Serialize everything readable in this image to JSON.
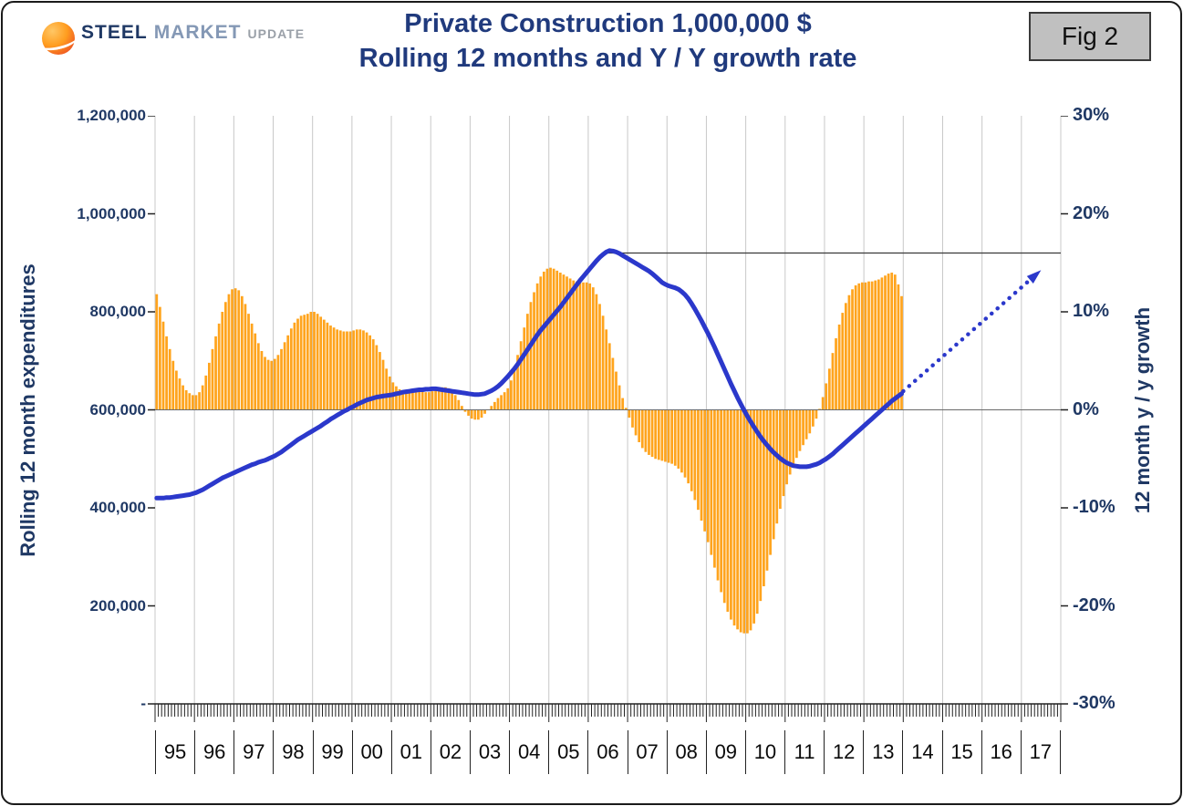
{
  "header": {
    "logo": {
      "steel": "STEEL",
      "market": "MARKET",
      "update": "UPDATE"
    },
    "title_line1": "Private Construction 1,000,000 $",
    "title_line2": "Rolling 12 months and Y / Y growth rate",
    "fig_label": "Fig 2"
  },
  "chart_data": {
    "type": "combo",
    "title": "Private Construction 1,000,000 $",
    "subtitle": "Rolling 12 months and Y / Y growth rate",
    "x_start_year": 1995,
    "x_end_year": 2018,
    "data_start_month": "1995-01",
    "grid": "vertical-year-lines",
    "axes": {
      "left": {
        "title": "Rolling 12 month expenditures",
        "min": 0,
        "max": 1200000,
        "ticks": [
          "1,200,000",
          "1,000,000",
          "800,000",
          "600,000",
          "400,000",
          "200,000",
          "-"
        ]
      },
      "right": {
        "title": "12 month y / y growth",
        "min": -30,
        "max": 30,
        "ticks": [
          "30%",
          "20%",
          "10%",
          "0%",
          "-10%",
          "-20%",
          "-30%"
        ]
      },
      "x": {
        "year_labels": [
          "95",
          "96",
          "97",
          "98",
          "99",
          "00",
          "01",
          "02",
          "03",
          "04",
          "05",
          "06",
          "07",
          "08",
          "09",
          "10",
          "11",
          "12",
          "13",
          "14",
          "15",
          "16",
          "17"
        ]
      }
    },
    "series": [
      {
        "name": "12 month y / y growth rate",
        "type": "bar",
        "axis": "right",
        "color": "#FFA41D",
        "unit": "percent",
        "values": [
          11.8,
          10.5,
          9,
          7.5,
          6.2,
          5,
          4,
          3.2,
          2.5,
          2,
          1.7,
          1.5,
          1.5,
          1.8,
          2.5,
          3.5,
          4.8,
          6.2,
          7.5,
          8.8,
          10,
          11,
          11.8,
          12.3,
          12.4,
          12.2,
          11.6,
          10.8,
          9.8,
          8.8,
          7.8,
          6.8,
          6,
          5.4,
          5.1,
          5,
          5.2,
          5.6,
          6.2,
          6.9,
          7.6,
          8.3,
          8.9,
          9.3,
          9.6,
          9.7,
          9.8,
          10,
          10,
          9.8,
          9.5,
          9.2,
          8.9,
          8.6,
          8.4,
          8.2,
          8.1,
          8,
          8,
          8,
          8.1,
          8.2,
          8.2,
          8.1,
          7.9,
          7.6,
          7.2,
          6.6,
          5.9,
          5.1,
          4.2,
          3.4,
          2.8,
          2.4,
          2.1,
          2,
          2,
          2,
          2,
          2,
          1.9,
          1.9,
          1.8,
          1.8,
          1.9,
          2,
          2.2,
          2.3,
          2.3,
          2.2,
          1.9,
          1.5,
          1,
          0.4,
          -0.2,
          -0.6,
          -0.9,
          -1,
          -1,
          -0.8,
          -0.4,
          0,
          0.4,
          0.8,
          1.2,
          1.5,
          1.8,
          2.2,
          3,
          4.2,
          5.6,
          7,
          8.4,
          9.8,
          11,
          12,
          12.9,
          13.6,
          14.1,
          14.4,
          14.5,
          14.4,
          14.2,
          14,
          13.8,
          13.6,
          13.4,
          13.2,
          13.1,
          13,
          13,
          13,
          12.9,
          12.5,
          11.8,
          10.8,
          9.6,
          8.2,
          6.8,
          5.3,
          3.9,
          2.5,
          1.2,
          0.2,
          -0.8,
          -1.8,
          -2.6,
          -3.3,
          -3.9,
          -4.3,
          -4.6,
          -4.8,
          -5,
          -5.1,
          -5.2,
          -5.3,
          -5.4,
          -5.5,
          -5.7,
          -6,
          -6.4,
          -6.9,
          -7.5,
          -8.3,
          -9.2,
          -10.2,
          -11.3,
          -12.4,
          -13.5,
          -14.8,
          -16.1,
          -17.4,
          -18.6,
          -19.7,
          -20.6,
          -21.4,
          -22,
          -22.4,
          -22.7,
          -22.8,
          -22.8,
          -22.5,
          -21.8,
          -20.8,
          -19.5,
          -18,
          -16.4,
          -14.8,
          -13.2,
          -11.6,
          -10.1,
          -8.8,
          -7.6,
          -6.6,
          -5.7,
          -4.9,
          -4.2,
          -3.6,
          -3,
          -2.4,
          -1.7,
          -0.9,
          0.1,
          1.3,
          2.7,
          4.2,
          5.8,
          7.3,
          8.7,
          9.9,
          10.9,
          11.7,
          12.3,
          12.7,
          12.9,
          13,
          13,
          13.1,
          13.1,
          13.2,
          13.3,
          13.5,
          13.7,
          13.9,
          14,
          13.8,
          12.8,
          11.6
        ]
      },
      {
        "name": "Rolling 12 month expenditures",
        "type": "line",
        "axis": "left",
        "color": "#2B38CB",
        "unit": "1,000,000 $",
        "values": [
          420000,
          420000,
          420000,
          421000,
          421000,
          422000,
          423000,
          424000,
          425000,
          426000,
          427000,
          429000,
          431000,
          434000,
          437000,
          441000,
          445000,
          449000,
          453000,
          457000,
          461000,
          464000,
          467000,
          470000,
          473000,
          476000,
          479000,
          482000,
          485000,
          488000,
          490000,
          493000,
          495000,
          497000,
          500000,
          503000,
          506000,
          510000,
          514000,
          519000,
          524000,
          529000,
          534000,
          539000,
          543000,
          547000,
          551000,
          555000,
          559000,
          563000,
          567000,
          572000,
          576000,
          581000,
          585000,
          589000,
          593000,
          597000,
          600000,
          604000,
          607000,
          611000,
          614000,
          617000,
          620000,
          622000,
          624000,
          626000,
          627000,
          628000,
          629000,
          630000,
          631000,
          633000,
          634000,
          636000,
          637000,
          638000,
          639000,
          640000,
          641000,
          641000,
          642000,
          642000,
          643000,
          643000,
          642000,
          641000,
          640000,
          639000,
          638000,
          637000,
          636000,
          635000,
          634000,
          633000,
          632000,
          631000,
          631000,
          632000,
          633000,
          636000,
          639000,
          643000,
          648000,
          654000,
          661000,
          668000,
          676000,
          684000,
          693000,
          703000,
          713000,
          723000,
          733000,
          743000,
          753000,
          762000,
          770000,
          778000,
          786000,
          794000,
          802000,
          810000,
          819000,
          828000,
          837000,
          846000,
          855000,
          864000,
          872000,
          880000,
          888000,
          896000,
          904000,
          911000,
          917000,
          922000,
          925000,
          924000,
          922000,
          919000,
          915000,
          911000,
          907000,
          903000,
          899000,
          895000,
          891000,
          887000,
          883000,
          878000,
          872000,
          866000,
          860000,
          856000,
          853000,
          851000,
          849000,
          846000,
          841000,
          835000,
          827000,
          817000,
          806000,
          794000,
          782000,
          769000,
          756000,
          742000,
          728000,
          713000,
          698000,
          683000,
          668000,
          653000,
          639000,
          625000,
          612000,
          599000,
          587000,
          576000,
          565000,
          555000,
          545000,
          536000,
          528000,
          520000,
          513000,
          507000,
          501000,
          496000,
          492000,
          489000,
          486000,
          485000,
          484000,
          484000,
          484000,
          485000,
          487000,
          489000,
          492000,
          496000,
          500000,
          505000,
          510000,
          516000,
          522000,
          528000,
          534000,
          540000,
          546000,
          552000,
          558000,
          564000,
          570000,
          576000,
          582000,
          588000,
          594000,
          600000,
          606000,
          612000,
          618000,
          623000,
          628000,
          633000
        ]
      },
      {
        "name": "Forecast projection",
        "type": "dotted_arrow",
        "axis": "left",
        "color": "#2B38CB",
        "x_years": [
          2014.0,
          2017.5
        ],
        "values": [
          638000,
          885000
        ]
      }
    ],
    "reference_line": {
      "axis": "left",
      "value": 920000,
      "from_year": 2006.4,
      "to_year": 2018
    },
    "zero_line_right_axis": 0,
    "legend_position": "none"
  }
}
